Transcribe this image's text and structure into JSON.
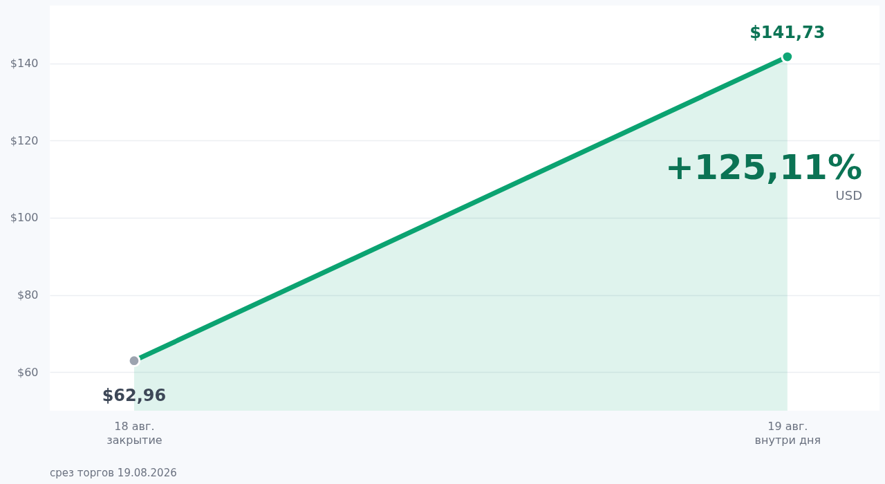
{
  "chart_data": {
    "type": "area",
    "categories": [
      "18 авг.\nзакрытие",
      "19 авг.\nвнутри дня"
    ],
    "series": [
      {
        "color": "#0ba371",
        "colors": [
          "#9ca3af",
          "#10a676"
        ],
        "values": [
          62.96,
          141.73
        ],
        "value_labels": [
          "$62,96",
          "$141,73"
        ]
      }
    ],
    "ylim": [
      50,
      155
    ],
    "yticks": [
      {
        "value": 60,
        "label": "$60"
      },
      {
        "value": 80,
        "label": "$80"
      },
      {
        "value": 100,
        "label": "$100"
      },
      {
        "value": 120,
        "label": "$120"
      },
      {
        "value": 140,
        "label": "$140"
      }
    ],
    "grid": "y",
    "marker": "circle",
    "annotations": [
      "+125,11%",
      "USD",
      "срез торгов 19.08.2026"
    ]
  }
}
